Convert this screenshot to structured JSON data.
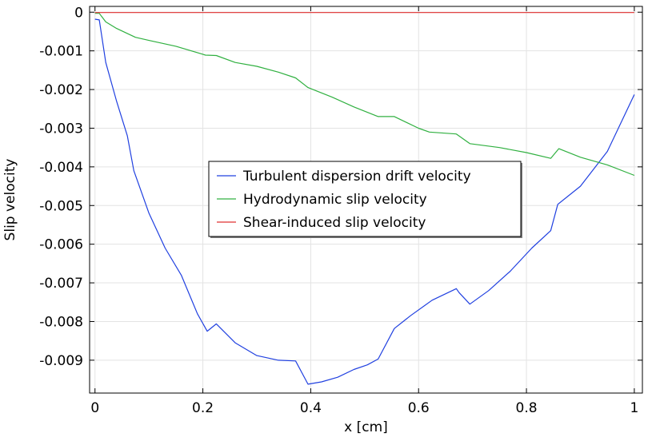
{
  "chart_data": {
    "type": "line",
    "title": "",
    "xlabel": "x [cm]",
    "ylabel": "Slip velocity",
    "xlim": [
      -0.01,
      1.015
    ],
    "ylim": [
      -0.00985,
      0.00015
    ],
    "xticks": [
      0,
      0.2,
      0.4,
      0.6,
      0.8,
      1
    ],
    "xtick_labels": [
      "0",
      "0.2",
      "0.4",
      "0.6",
      "0.8",
      "1"
    ],
    "yticks": [
      0,
      -0.001,
      -0.002,
      -0.003,
      -0.004,
      -0.005,
      -0.006,
      -0.007,
      -0.008,
      -0.009
    ],
    "ytick_labels": [
      "0",
      "-0.001",
      "-0.002",
      "-0.003",
      "-0.004",
      "-0.005",
      "-0.006",
      "-0.007",
      "-0.008",
      "-0.009"
    ],
    "grid": true,
    "legend_position": "center",
    "series": [
      {
        "name": "Turbulent dispersion drift velocity",
        "color": "#2040e0",
        "x": [
          0,
          0.008,
          0.02,
          0.04,
          0.06,
          0.072,
          0.1,
          0.13,
          0.16,
          0.19,
          0.208,
          0.225,
          0.26,
          0.3,
          0.34,
          0.372,
          0.395,
          0.42,
          0.45,
          0.48,
          0.505,
          0.525,
          0.555,
          0.585,
          0.625,
          0.67,
          0.675,
          0.695,
          0.73,
          0.77,
          0.81,
          0.845,
          0.858,
          0.9,
          0.95,
          1.0
        ],
        "y": [
          -0.00018,
          -0.0002,
          -0.0013,
          -0.0023,
          -0.0032,
          -0.0041,
          -0.0052,
          -0.0061,
          -0.0068,
          -0.0078,
          -0.00825,
          -0.00806,
          -0.00855,
          -0.00888,
          -0.009,
          -0.00902,
          -0.00962,
          -0.00956,
          -0.00944,
          -0.00924,
          -0.00912,
          -0.00897,
          -0.00818,
          -0.00785,
          -0.00745,
          -0.00715,
          -0.00725,
          -0.00755,
          -0.0072,
          -0.0067,
          -0.0061,
          -0.00565,
          -0.00497,
          -0.0045,
          -0.0036,
          -0.00213
        ]
      },
      {
        "name": "Hydrodynamic slip velocity",
        "color": "#30b040",
        "x": [
          0,
          0.008,
          0.02,
          0.04,
          0.06,
          0.075,
          0.1,
          0.15,
          0.205,
          0.225,
          0.26,
          0.3,
          0.34,
          0.372,
          0.395,
          0.44,
          0.48,
          0.525,
          0.555,
          0.6,
          0.62,
          0.67,
          0.695,
          0.75,
          0.8,
          0.845,
          0.86,
          0.9,
          0.95,
          1.0
        ],
        "y": [
          -3e-05,
          -3e-05,
          -0.00025,
          -0.00042,
          -0.00055,
          -0.00065,
          -0.00073,
          -0.00088,
          -0.00111,
          -0.00112,
          -0.0013,
          -0.0014,
          -0.00155,
          -0.0017,
          -0.00195,
          -0.0022,
          -0.00245,
          -0.0027,
          -0.0027,
          -0.003,
          -0.0031,
          -0.00315,
          -0.0034,
          -0.0035,
          -0.00363,
          -0.00378,
          -0.00353,
          -0.00375,
          -0.00395,
          -0.00422
        ]
      },
      {
        "name": "Shear-induced slip velocity",
        "color": "#e03030",
        "x": [
          0,
          1.0
        ],
        "y": [
          -1e-05,
          -1e-05
        ]
      }
    ]
  }
}
